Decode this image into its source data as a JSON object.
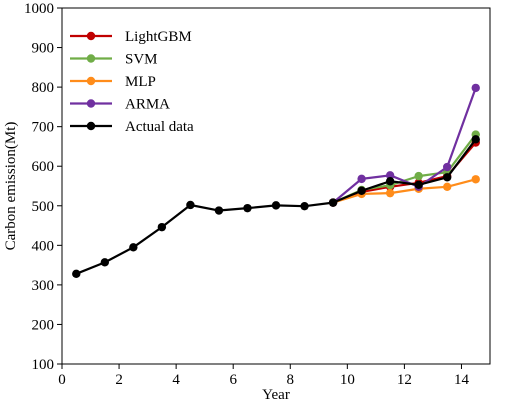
{
  "chart_data": {
    "type": "line",
    "xlabel": "Year",
    "ylabel": "Carbon emission(Mt)",
    "xlim": [
      0,
      15
    ],
    "ylim": [
      100,
      1000
    ],
    "xticks": [
      0,
      2,
      4,
      6,
      8,
      10,
      12,
      14
    ],
    "yticks": [
      100,
      200,
      300,
      400,
      500,
      600,
      700,
      800,
      900,
      1000
    ],
    "grid": false,
    "legend_position": "top-left",
    "series": [
      {
        "name": "LightGBM",
        "color": "#c00000",
        "x": [
          9.5,
          10.5,
          11.5,
          12.5,
          13.5,
          14.5
        ],
        "y": [
          508,
          535,
          548,
          558,
          575,
          660
        ]
      },
      {
        "name": "SVM",
        "color": "#70ad47",
        "x": [
          9.5,
          10.5,
          11.5,
          12.5,
          13.5,
          14.5
        ],
        "y": [
          508,
          540,
          552,
          575,
          585,
          680
        ]
      },
      {
        "name": "MLP",
        "color": "#ff8c1a",
        "x": [
          9.5,
          10.5,
          11.5,
          12.5,
          13.5,
          14.5
        ],
        "y": [
          508,
          530,
          532,
          543,
          548,
          567
        ]
      },
      {
        "name": "ARMA",
        "color": "#7030a0",
        "x": [
          9.5,
          10.5,
          11.5,
          12.5,
          13.5,
          14.5
        ],
        "y": [
          508,
          568,
          577,
          548,
          598,
          798
        ]
      },
      {
        "name": "Actual data",
        "color": "#000000",
        "x": [
          0.5,
          1.5,
          2.5,
          3.5,
          4.5,
          5.5,
          6.5,
          7.5,
          8.5,
          9.5,
          10.5,
          11.5,
          12.5,
          13.5,
          14.5
        ],
        "y": [
          328,
          357,
          395,
          446,
          502,
          488,
          494,
          501,
          499,
          508,
          538,
          562,
          553,
          572,
          668
        ]
      }
    ]
  }
}
